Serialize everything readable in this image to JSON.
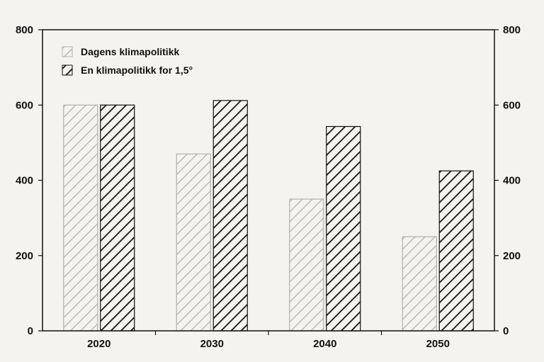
{
  "chart_data": {
    "type": "bar",
    "categories": [
      "2020",
      "2030",
      "2040",
      "2050"
    ],
    "series": [
      {
        "name": "Dagens klimapolitikk",
        "values": [
          600,
          470,
          350,
          250
        ],
        "color": "#b8b8b8",
        "pattern": "light-hatch"
      },
      {
        "name": "En klimapolitikk for 1,5°",
        "values": [
          600,
          612,
          543,
          425
        ],
        "color": "#111111",
        "pattern": "dark-hatch"
      }
    ],
    "title": "",
    "xlabel": "",
    "ylabel": "",
    "ylim": [
      0,
      800
    ],
    "yticks": [
      "0",
      "200",
      "400",
      "600",
      "800"
    ],
    "right_axis_ticks": true,
    "grid": false,
    "legend_position": "top-left"
  }
}
